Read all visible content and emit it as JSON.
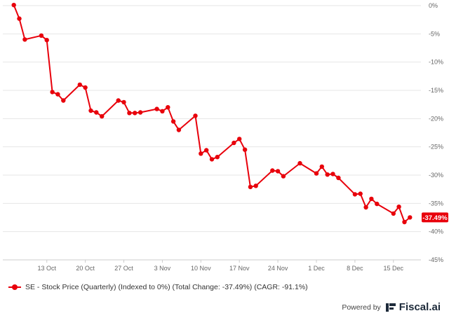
{
  "chart_data": {
    "type": "line",
    "title": "",
    "xlabel": "",
    "ylabel": "",
    "x_tick_labels": [
      "13 Oct",
      "20 Oct",
      "27 Oct",
      "3 Nov",
      "10 Nov",
      "17 Nov",
      "24 Nov",
      "1 Dec",
      "8 Dec",
      "15 Dec"
    ],
    "y_tick_labels": [
      "0%",
      "-5%",
      "-10%",
      "-15%",
      "-20%",
      "-25%",
      "-30%",
      "-35%",
      "-40%",
      "-45%"
    ],
    "ylim": [
      -45,
      0
    ],
    "grid": "horizontal",
    "legend_position": "bottom-left",
    "series": [
      {
        "name": "SE - Stock Price (Quarterly) (Indexed to 0%) (Total Change: -37.49%) (CAGR: -91.1%)",
        "color": "#e8000b",
        "end_label": "-37.49%",
        "x": [
          "2025-10-07",
          "2025-10-08",
          "2025-10-09",
          "2025-10-12",
          "2025-10-13",
          "2025-10-14",
          "2025-10-15",
          "2025-10-16",
          "2025-10-19",
          "2025-10-20",
          "2025-10-21",
          "2025-10-22",
          "2025-10-23",
          "2025-10-26",
          "2025-10-27",
          "2025-10-28",
          "2025-10-29",
          "2025-10-30",
          "2025-11-02",
          "2025-11-03",
          "2025-11-04",
          "2025-11-05",
          "2025-11-06",
          "2025-11-09",
          "2025-11-10",
          "2025-11-11",
          "2025-11-12",
          "2025-11-13",
          "2025-11-16",
          "2025-11-17",
          "2025-11-18",
          "2025-11-19",
          "2025-11-20",
          "2025-11-23",
          "2025-11-24",
          "2025-11-25",
          "2025-11-28",
          "2025-12-01",
          "2025-12-02",
          "2025-12-03",
          "2025-12-04",
          "2025-12-05",
          "2025-12-08",
          "2025-12-09",
          "2025-12-10",
          "2025-12-11",
          "2025-12-12",
          "2025-12-15",
          "2025-12-16",
          "2025-12-17",
          "2025-12-18"
        ],
        "values": [
          0.1,
          -2.3,
          -6.0,
          -5.3,
          -6.1,
          -15.3,
          -15.7,
          -16.8,
          -14.0,
          -14.5,
          -18.6,
          -18.9,
          -19.6,
          -16.8,
          -17.1,
          -19.0,
          -19.0,
          -18.9,
          -18.3,
          -18.7,
          -18.0,
          -20.5,
          -22.0,
          -19.5,
          -26.2,
          -25.6,
          -27.2,
          -26.8,
          -24.3,
          -23.6,
          -25.5,
          -32.1,
          -31.9,
          -29.2,
          -29.3,
          -30.2,
          -27.9,
          -29.7,
          -28.5,
          -29.9,
          -29.8,
          -30.5,
          -33.4,
          -33.3,
          -35.7,
          -34.2,
          -35.1,
          -36.8,
          -35.6,
          -38.3,
          -37.49
        ]
      }
    ]
  },
  "legend": {
    "label": "SE - Stock Price (Quarterly) (Indexed to 0%) (Total Change: -37.49%) (CAGR: -91.1%)"
  },
  "footer": {
    "powered_by": "Powered by",
    "brand": "Fiscal.ai"
  },
  "colors": {
    "series": "#e8000b",
    "grid": "#e6e6e6",
    "axis": "#cccccc"
  }
}
